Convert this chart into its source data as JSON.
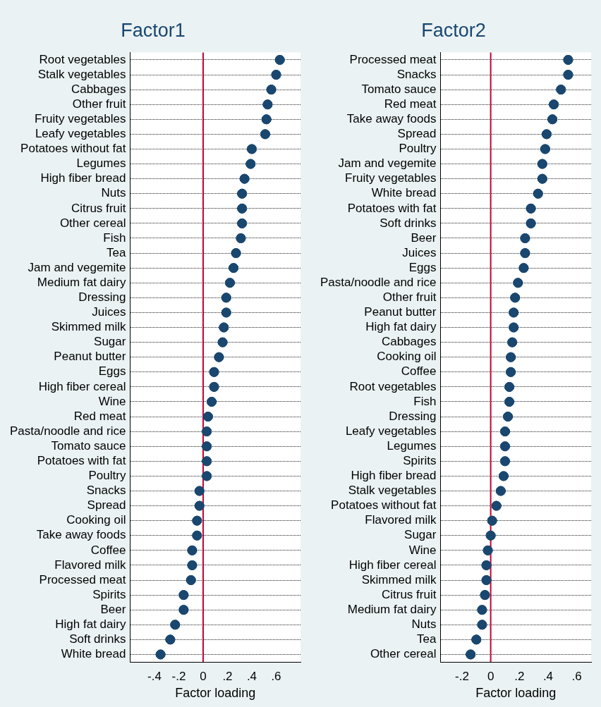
{
  "chart_data": [
    {
      "type": "scatter",
      "title": "Factor1",
      "xlabel": "Factor loading",
      "orientation": "horizontal",
      "marker": "circle",
      "grid": "y",
      "color": "#1a476f",
      "categories": [
        "Root vegetables",
        "Stalk vegetables",
        "Cabbages",
        "Other fruit",
        "Fruity vegetables",
        "Leafy vegetables",
        "Potatoes without fat",
        "Legumes",
        "High fiber bread",
        "Nuts",
        "Citrus fruit",
        "Other cereal",
        "Fish",
        "Tea",
        "Jam and vegemite",
        "Medium fat dairy",
        "Dressing",
        "Juices",
        "Skimmed milk",
        "Sugar",
        "Peanut butter",
        "Eggs",
        "High fiber cereal",
        "Wine",
        "Red meat",
        "Pasta/noodle and rice",
        "Tomato sauce",
        "Potatoes with fat",
        "Poultry",
        "Snacks",
        "Spread",
        "Cooking oil",
        "Take away foods",
        "Coffee",
        "Flavored milk",
        "Processed meat",
        "Spirits",
        "Beer",
        "High fat dairy",
        "Soft drinks",
        "White bread"
      ],
      "values": [
        0.63,
        0.6,
        0.56,
        0.53,
        0.52,
        0.51,
        0.4,
        0.39,
        0.34,
        0.32,
        0.32,
        0.32,
        0.31,
        0.27,
        0.25,
        0.22,
        0.19,
        0.19,
        0.17,
        0.16,
        0.13,
        0.09,
        0.09,
        0.07,
        0.04,
        0.03,
        0.03,
        0.03,
        0.03,
        -0.03,
        -0.03,
        -0.05,
        -0.05,
        -0.09,
        -0.09,
        -0.1,
        -0.16,
        -0.16,
        -0.23,
        -0.27,
        -0.35
      ],
      "xlim": [
        -0.6,
        0.8
      ],
      "xticks": [
        {
          "value": -0.4,
          "label": "-.4"
        },
        {
          "value": -0.2,
          "label": "-.2"
        },
        0,
        {
          "value": 0.2,
          "label": ".2"
        },
        {
          "value": 0.4,
          "label": ".4"
        },
        {
          "value": 0.6,
          "label": ".6"
        }
      ],
      "ref_lines": [
        {
          "axis": "x",
          "value": 0,
          "color": "#c10534"
        }
      ]
    },
    {
      "type": "scatter",
      "title": "Factor2",
      "xlabel": "Factor loading",
      "orientation": "horizontal",
      "marker": "circle",
      "grid": "y",
      "color": "#1a476f",
      "categories": [
        "Processed meat",
        "Snacks",
        "Tomato sauce",
        "Red meat",
        "Take away foods",
        "Spread",
        "Poultry",
        "Jam and vegemite",
        "Fruity vegetables",
        "White bread",
        "Potatoes with fat",
        "Soft drinks",
        "Beer",
        "Juices",
        "Eggs",
        "Pasta/noodle and rice",
        "Other fruit",
        "Peanut butter",
        "High fat dairy",
        "Cabbages",
        "Cooking oil",
        "Coffee",
        "Root vegetables",
        "Fish",
        "Dressing",
        "Leafy vegetables",
        "Legumes",
        "Spirits",
        "High fiber bread",
        "Stalk vegetables",
        "Potatoes without fat",
        "Flavored milk",
        "Sugar",
        "Wine",
        "High fiber cereal",
        "Skimmed milk",
        "Citrus fruit",
        "Medium fat dairy",
        "Nuts",
        "Tea",
        "Other cereal"
      ],
      "values": [
        0.54,
        0.54,
        0.49,
        0.44,
        0.43,
        0.39,
        0.38,
        0.36,
        0.36,
        0.33,
        0.28,
        0.28,
        0.24,
        0.24,
        0.23,
        0.19,
        0.17,
        0.16,
        0.16,
        0.15,
        0.14,
        0.14,
        0.13,
        0.13,
        0.12,
        0.1,
        0.1,
        0.1,
        0.09,
        0.07,
        0.04,
        0.01,
        0,
        -0.02,
        -0.03,
        -0.03,
        -0.04,
        -0.06,
        -0.06,
        -0.1,
        -0.14
      ],
      "xlim": [
        -0.35,
        0.7
      ],
      "xticks": [
        {
          "value": -0.2,
          "label": "-.2"
        },
        0,
        {
          "value": 0.2,
          "label": ".2"
        },
        {
          "value": 0.4,
          "label": ".4"
        },
        {
          "value": 0.6,
          "label": ".6"
        }
      ],
      "ref_lines": [
        {
          "axis": "x",
          "value": 0,
          "color": "#c10534"
        }
      ]
    }
  ]
}
